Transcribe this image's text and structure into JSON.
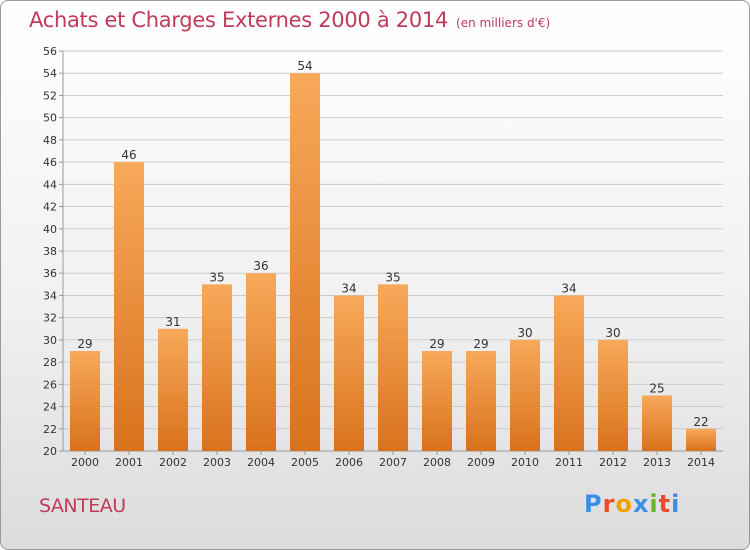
{
  "header": {
    "title": "Achats et Charges Externes 2000 à 2014",
    "subtitle": "(en milliers d'€)"
  },
  "footer": {
    "commune": "SANTEAU",
    "logo_text": "Proxiti",
    "logo_colors": [
      "#3a8ee6",
      "#e94b2b",
      "#f2a100",
      "#3a8ee6",
      "#6ab42d",
      "#e94b2b",
      "#3a8ee6"
    ]
  },
  "chart_data": {
    "type": "bar",
    "title": "Achats et Charges Externes 2000 à 2014",
    "subtitle": "(en milliers d'€)",
    "categories": [
      "2000",
      "2001",
      "2002",
      "2003",
      "2004",
      "2005",
      "2006",
      "2007",
      "2008",
      "2009",
      "2010",
      "2011",
      "2012",
      "2013",
      "2014"
    ],
    "values": [
      29,
      46,
      31,
      35,
      36,
      54,
      34,
      35,
      29,
      29,
      30,
      34,
      30,
      25,
      22
    ],
    "ylim": [
      20,
      56
    ],
    "yticks": [
      20,
      22,
      24,
      26,
      28,
      30,
      32,
      34,
      36,
      38,
      40,
      42,
      44,
      46,
      48,
      50,
      52,
      54,
      56
    ],
    "grid": true,
    "data_labels": true,
    "colors": {
      "bar_light": "#f7a95a",
      "bar_dark": "#d9721c",
      "grid": "#cccccc",
      "text": "#333333",
      "title": "#c03a5a"
    }
  }
}
